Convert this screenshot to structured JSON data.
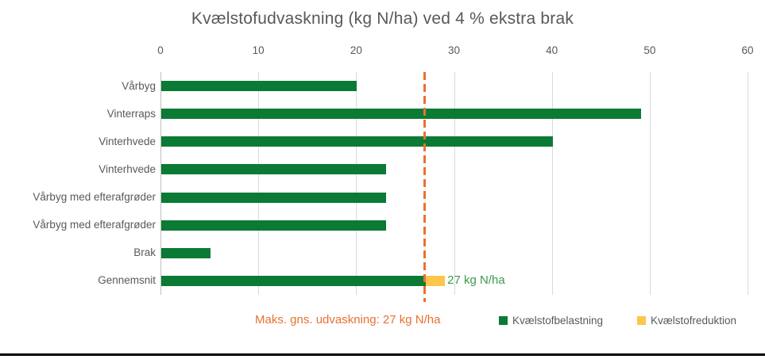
{
  "title": "Kvælstofudvaskning (kg N/ha) ved 4 % ekstra brak",
  "chart_data": {
    "type": "bar",
    "orientation": "horizontal",
    "title": "Kvælstofudvaskning (kg N/ha) ved 4 % ekstra brak",
    "categories": [
      "Vårbyg",
      "Vinterraps",
      "Vinterhvede",
      "Vinterhvede",
      "Vårbyg med efterafgrøder",
      "Vårbyg med efterafgrøder",
      "Brak",
      "Gennemsnit"
    ],
    "series": [
      {
        "name": "Kvælstofbelastning",
        "color": "#0B7A35",
        "values": [
          20,
          49,
          40,
          23,
          23,
          23,
          5,
          27
        ]
      },
      {
        "name": "Kvælstofreduktion",
        "color": "#FCC64A",
        "values": [
          0,
          0,
          0,
          0,
          0,
          0,
          0,
          2
        ]
      }
    ],
    "xlim": [
      0,
      60
    ],
    "xticks": [
      0,
      10,
      20,
      30,
      40,
      50,
      60
    ],
    "grid": true,
    "gridline_color": "#D9D9D9",
    "axis_line_color": "#BFBFBF",
    "reference_line": {
      "value": 27,
      "style": "dashed",
      "color": "#E97132",
      "label": "Maks. gns. udvaskning: 27 kg N/ha"
    },
    "annotation": {
      "category": "Gennemsnit",
      "text": "27 kg N/ha",
      "color": "#3D9A4D"
    },
    "legend_position": "bottom"
  },
  "legend": {
    "ref_label": "Maks. gns. udvaskning: 27 kg N/ha",
    "items": [
      {
        "label": "Kvælstofbelastning",
        "color": "#0B7A35"
      },
      {
        "label": "Kvælstofreduktion",
        "color": "#FCC64A"
      }
    ]
  }
}
